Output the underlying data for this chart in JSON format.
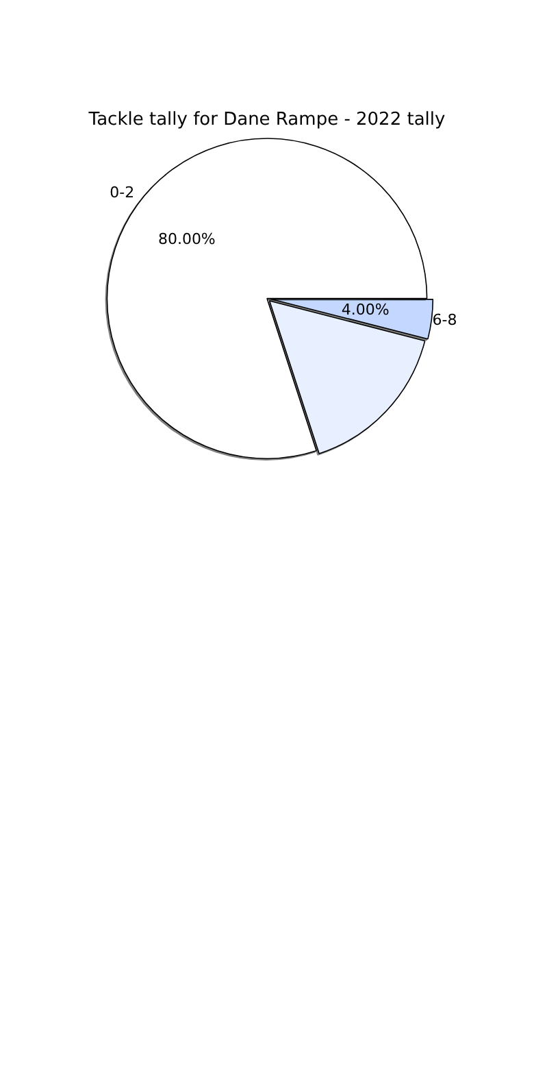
{
  "chart_data": {
    "type": "pie",
    "title": "Tackle tally for Dane Rampe - 2022 tally",
    "categories": [
      "0-2",
      null,
      "6-8"
    ],
    "values": [
      80,
      16,
      4
    ],
    "colors": [
      "#ffffff",
      "#e8f0ff",
      "#c4d8ff"
    ],
    "value_labels": [
      "80.00%",
      null,
      "4.00%"
    ],
    "legend": false
  }
}
